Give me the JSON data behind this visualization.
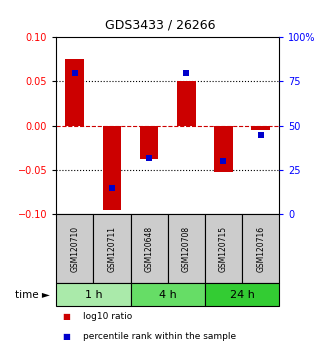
{
  "title": "GDS3433 / 26266",
  "samples": [
    "GSM120710",
    "GSM120711",
    "GSM120648",
    "GSM120708",
    "GSM120715",
    "GSM120716"
  ],
  "log10_ratio": [
    0.075,
    -0.095,
    -0.038,
    0.05,
    -0.052,
    -0.005
  ],
  "percentile_rank": [
    80,
    15,
    32,
    80,
    30,
    45
  ],
  "groups": [
    {
      "label": "1 h",
      "indices": [
        0,
        1
      ],
      "color": "#aaeaaa"
    },
    {
      "label": "4 h",
      "indices": [
        2,
        3
      ],
      "color": "#66dd66"
    },
    {
      "label": "24 h",
      "indices": [
        4,
        5
      ],
      "color": "#33cc33"
    }
  ],
  "ylim_left": [
    -0.1,
    0.1
  ],
  "ylim_right": [
    0,
    100
  ],
  "yticks_left": [
    -0.1,
    -0.05,
    0,
    0.05,
    0.1
  ],
  "yticks_right": [
    0,
    25,
    50,
    75,
    100
  ],
  "bar_color": "#cc0000",
  "dot_color": "#0000cc",
  "bar_width": 0.5,
  "legend_items": [
    "log10 ratio",
    "percentile rank within the sample"
  ],
  "legend_colors": [
    "#cc0000",
    "#0000cc"
  ],
  "sample_box_color": "#cccccc",
  "zero_line_color": "#cc0000",
  "dot_grid_color": "black",
  "title_fontsize": 9
}
